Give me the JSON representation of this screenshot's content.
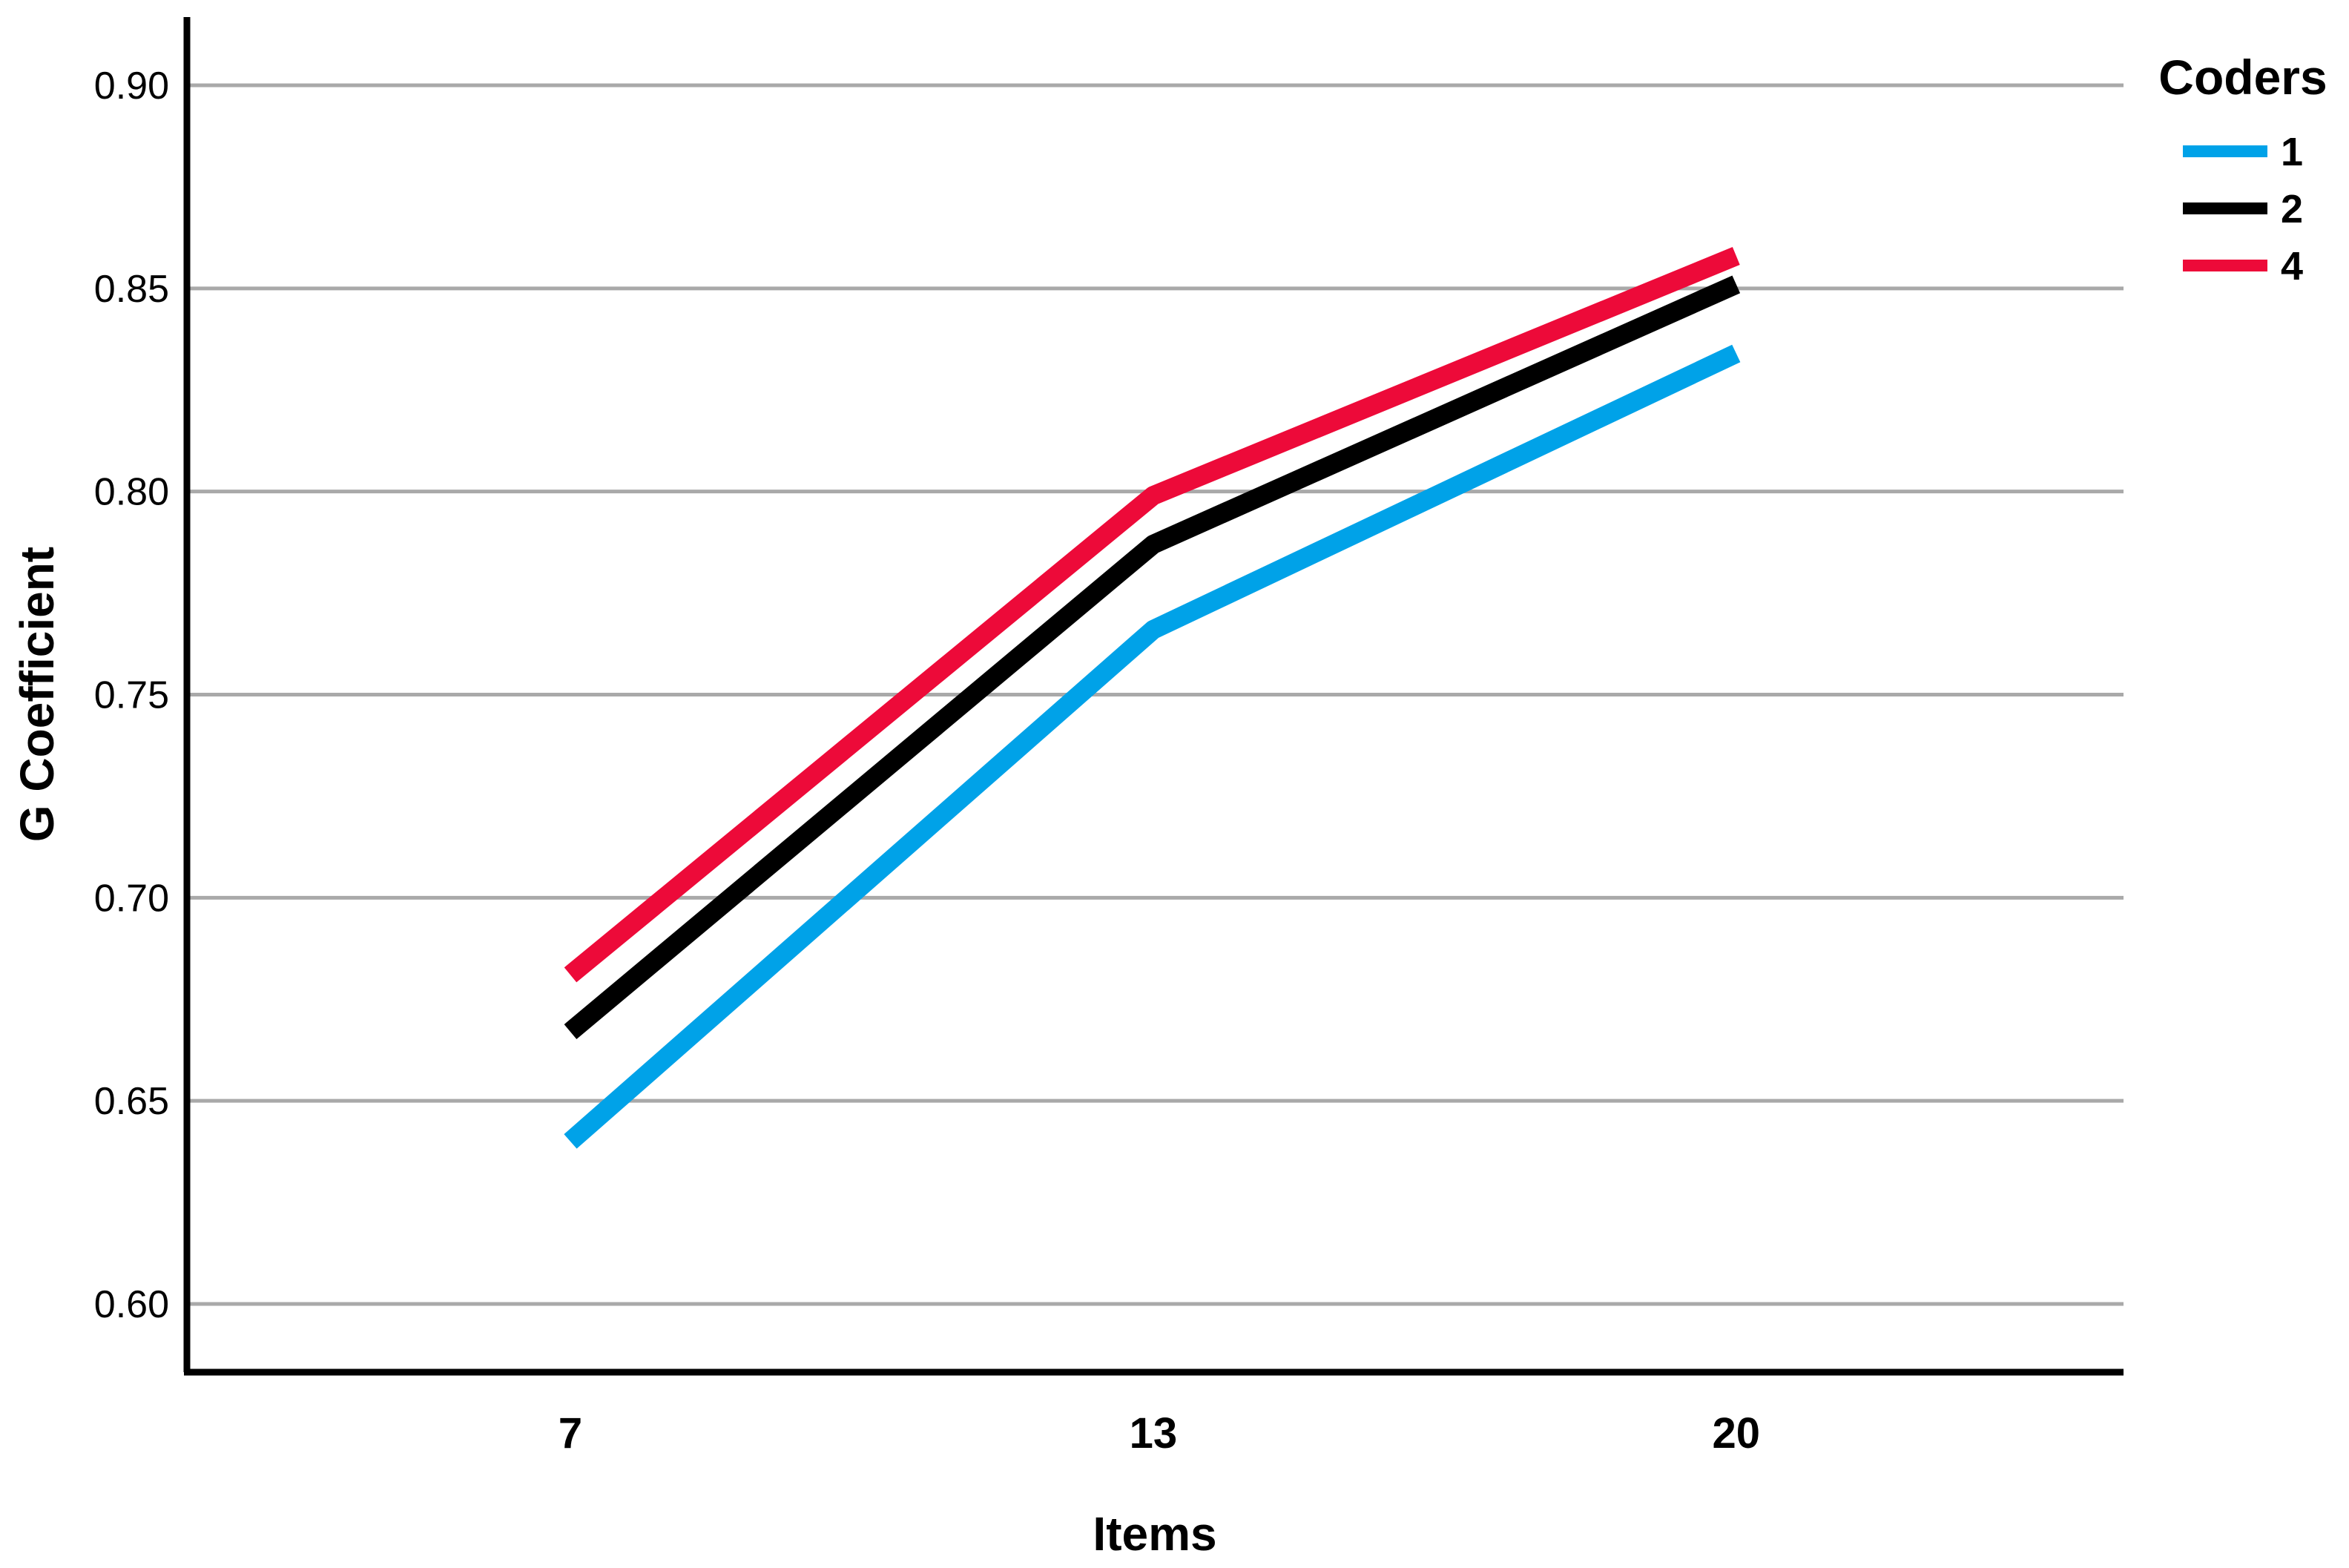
{
  "chart_data": {
    "type": "line",
    "categories": [
      "7",
      "13",
      "20"
    ],
    "series": [
      {
        "name": "1",
        "color": "#00A2E8",
        "values": [
          0.64,
          0.766,
          0.834
        ]
      },
      {
        "name": "2",
        "color": "#000000",
        "values": [
          0.667,
          0.787,
          0.851
        ]
      },
      {
        "name": "4",
        "color": "#ED0A39",
        "values": [
          0.681,
          0.799,
          0.858
        ]
      }
    ],
    "title": "",
    "xlabel": "Items",
    "ylabel": "G Coefficient",
    "yticks": [
      0.9,
      0.85,
      0.8,
      0.75,
      0.7,
      0.65,
      0.6
    ],
    "ytick_decimals": 2,
    "ylim": [
      0.583,
      0.917
    ],
    "grid": true,
    "gridline_color": "#A9A9A9",
    "axis_color": "#000000",
    "legend": {
      "title": "Coders",
      "entries": [
        "1",
        "2",
        "4"
      ],
      "position": "top-right"
    }
  }
}
